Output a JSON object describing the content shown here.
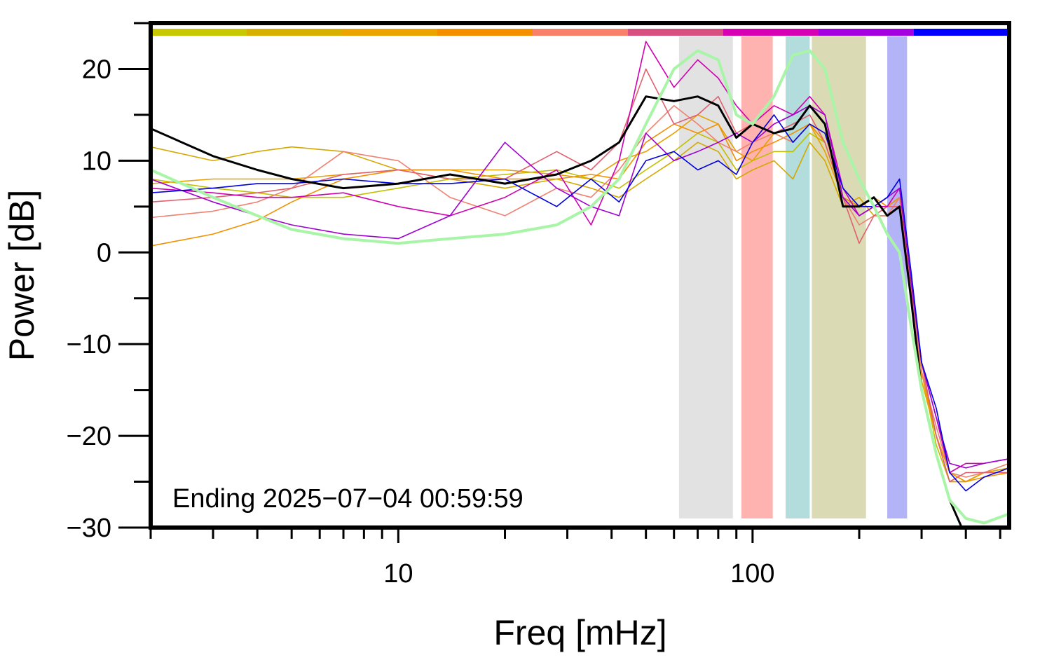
{
  "chart_data": {
    "type": "line",
    "xlabel": "Freq [mHz]",
    "ylabel": "Power [dB]",
    "annotation": "Ending 2025−07−04 00:59:59",
    "xscale": "log",
    "xlim": [
      2,
      530
    ],
    "ylim": [
      -30,
      25
    ],
    "xticks": [
      10,
      100
    ],
    "xminor": [
      2,
      3,
      4,
      5,
      6,
      7,
      8,
      9,
      20,
      30,
      40,
      50,
      60,
      70,
      80,
      90,
      200,
      300,
      400,
      500
    ],
    "yticks": [
      {
        "value": -30,
        "label": "−30"
      },
      {
        "value": -20,
        "label": "−20"
      },
      {
        "value": -10,
        "label": "−10"
      },
      0,
      10,
      20
    ],
    "yminor": [
      -25,
      -15,
      -5,
      5,
      15,
      25
    ],
    "bands": [
      {
        "range": [
          62,
          88
        ],
        "color": "#e2e2e2"
      },
      {
        "range": [
          93,
          114
        ],
        "color": "#ffb3b0"
      },
      {
        "range": [
          124,
          145
        ],
        "color": "#b3dcdc"
      },
      {
        "range": [
          147,
          209
        ],
        "color": "#dadab5"
      },
      {
        "range": [
          240,
          273
        ],
        "color": "#b3b3f7"
      }
    ],
    "x": [
      2,
      3,
      4,
      5,
      7,
      10,
      14,
      20,
      28,
      35,
      42,
      50,
      60,
      70,
      80,
      90,
      100,
      115,
      130,
      145,
      160,
      180,
      200,
      220,
      240,
      260,
      280,
      300,
      330,
      360,
      400,
      450,
      530
    ],
    "series": [
      {
        "color": "#c0c000",
        "width": 1.6,
        "values": [
          8,
          7,
          6.5,
          6,
          6,
          7,
          8,
          8.5,
          9,
          8,
          7,
          9,
          11,
          13,
          12,
          9,
          10,
          11,
          11,
          13,
          12,
          6,
          5,
          5,
          5,
          6,
          -3,
          -13,
          -21,
          -25,
          -25,
          -24,
          -23.5
        ]
      },
      {
        "color": "#d4a800",
        "width": 1.6,
        "values": [
          11.5,
          10,
          11,
          11.5,
          11,
          9,
          8,
          7,
          8,
          7,
          6,
          8,
          10,
          12,
          11,
          8,
          9,
          10,
          8,
          12,
          10,
          5,
          6,
          4,
          4,
          6,
          -4,
          -12,
          -20,
          -24,
          -25,
          -24,
          -23.5
        ]
      },
      {
        "color": "#e8a000",
        "width": 1.6,
        "values": [
          7.5,
          8,
          8,
          8,
          8.5,
          9,
          9,
          9,
          8.5,
          8,
          10,
          11,
          13,
          15,
          14,
          11,
          10,
          13,
          12,
          14,
          11,
          6,
          5,
          5,
          5,
          5,
          -3,
          -14,
          -20,
          -24,
          -25,
          -24,
          -24
        ]
      },
      {
        "color": "#f09000",
        "width": 1.6,
        "values": [
          0.7,
          2,
          3.5,
          5.5,
          8,
          9,
          9,
          8,
          8,
          8.5,
          8,
          12,
          14,
          13,
          14,
          10,
          11,
          12,
          13,
          14,
          12,
          6,
          5,
          6,
          5,
          6,
          -4,
          -13,
          -20,
          -25,
          -25,
          -24.5,
          -24
        ]
      },
      {
        "color": "#f08070",
        "width": 1.6,
        "values": [
          3.8,
          4.5,
          5.5,
          7,
          11,
          10,
          6,
          4,
          7,
          6,
          9,
          13,
          16,
          14,
          12,
          11,
          12,
          13,
          12,
          14,
          13,
          6,
          3,
          4,
          4,
          6,
          -4,
          -13,
          -19,
          -24,
          -24.5,
          -24,
          -23
        ]
      },
      {
        "color": "#e06070",
        "width": 1.6,
        "values": [
          5.5,
          6,
          6.5,
          7,
          8.5,
          9,
          8,
          8,
          11,
          9,
          12,
          20,
          14,
          15,
          17,
          13,
          14,
          13,
          14,
          15,
          12,
          6,
          1,
          4,
          5,
          5,
          -4,
          -12,
          -20,
          -25,
          -24,
          -24,
          -24
        ]
      },
      {
        "color": "#d000b0",
        "width": 1.6,
        "values": [
          7,
          6.5,
          6,
          6,
          6.5,
          5,
          4,
          6,
          9,
          3,
          10,
          23,
          18,
          21,
          19,
          16,
          14,
          16,
          15,
          17,
          15,
          7,
          4,
          5,
          5,
          7,
          -3,
          -12,
          -18,
          -24,
          -23,
          -23,
          -22.5
        ]
      },
      {
        "color": "#a000d0",
        "width": 1.6,
        "values": [
          8,
          5.5,
          4,
          3,
          2,
          1.5,
          4,
          12,
          7,
          5,
          4,
          13,
          10,
          11,
          12,
          13,
          12,
          14,
          15,
          16,
          15,
          6,
          4,
          5,
          6,
          7,
          -3,
          -12,
          -18,
          -23,
          -23.5,
          -23,
          -22.5
        ]
      },
      {
        "color": "#0000e0",
        "width": 1.6,
        "values": [
          6.5,
          7,
          7.5,
          7.5,
          8,
          7.5,
          7.5,
          8,
          5,
          8,
          5.5,
          10,
          11,
          9,
          10,
          8.5,
          12,
          15,
          12,
          14,
          13,
          7,
          5,
          5,
          6,
          8,
          -2,
          -12,
          -17,
          -24,
          -26,
          -24.5,
          -23.5
        ]
      },
      {
        "color": "#000000",
        "width": 3,
        "values": [
          13.5,
          10.5,
          9,
          8,
          7,
          7.5,
          8.5,
          7.5,
          8.5,
          10,
          12,
          17,
          16.5,
          17,
          16,
          12.5,
          14,
          13,
          13.5,
          16,
          14,
          5,
          5,
          6,
          4,
          5,
          -5,
          -15,
          -22,
          -27,
          -31,
          null,
          null
        ]
      },
      {
        "color": "#a8f5a8",
        "width": 4,
        "values": [
          9,
          6,
          4,
          2.5,
          1.5,
          1,
          1.5,
          2,
          3,
          5,
          8,
          14,
          20,
          22,
          21,
          15,
          14,
          17,
          21.5,
          22,
          20,
          12,
          8,
          5,
          2,
          0,
          -8,
          -15,
          -22,
          -27,
          -29,
          -29.5,
          -28.5
        ]
      }
    ]
  }
}
